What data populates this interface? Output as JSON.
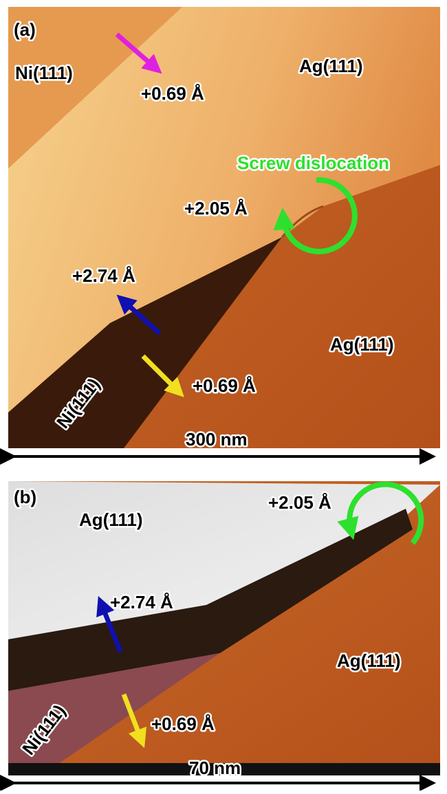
{
  "panels": [
    {
      "label": "(a)",
      "annotations": [
        "Ni(111)",
        "+0.69 Å",
        "Ag(111)",
        "Screw dislocation",
        "+2.05 Å",
        "+2.74 Å",
        "Ag(111)",
        "+0.69 Å",
        "Ni(111)"
      ],
      "scale_bar": "300 nm"
    },
    {
      "label": "(b)",
      "annotations": [
        "Ag(111)",
        "+2.05 Å",
        "+2.74 Å",
        "Ag(111)",
        "Ni(111)",
        "+0.69 Å"
      ],
      "scale_bar": "70 nm"
    }
  ]
}
